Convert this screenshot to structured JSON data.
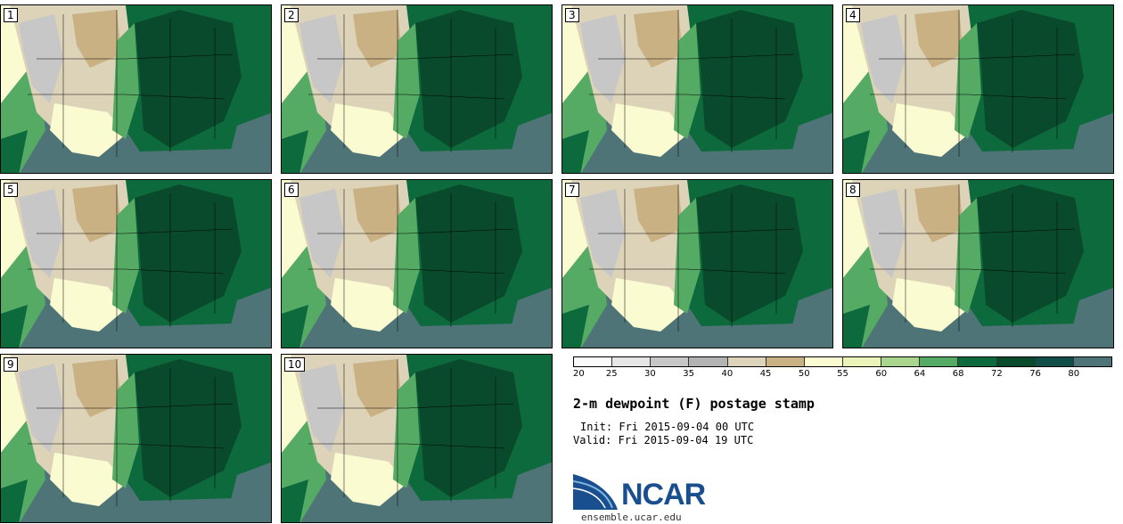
{
  "stamps": [
    "1",
    "2",
    "3",
    "4",
    "5",
    "6",
    "7",
    "8",
    "9",
    "10"
  ],
  "colorbar": {
    "colors": [
      "#fafafa",
      "#e6e6e6",
      "#c7c7c7",
      "#b3b3b3",
      "#ddd3b9",
      "#c9b183",
      "#fbfbd2",
      "#ecf3b9",
      "#a8d68d",
      "#55aa64",
      "#0d6a3c",
      "#0a4a2c",
      "#114d49",
      "#4e7478"
    ],
    "ticks": [
      "20",
      "25",
      "30",
      "35",
      "40",
      "45",
      "50",
      "55",
      "60",
      "64",
      "68",
      "72",
      "76",
      "80"
    ]
  },
  "title": "2-m dewpoint (F) postage stamp",
  "init": "Init: Fri 2015-09-04 00 UTC",
  "valid": "Valid: Fri 2015-09-04 19 UTC",
  "logo_text": "NCAR",
  "site": "ensemble.ucar.edu"
}
